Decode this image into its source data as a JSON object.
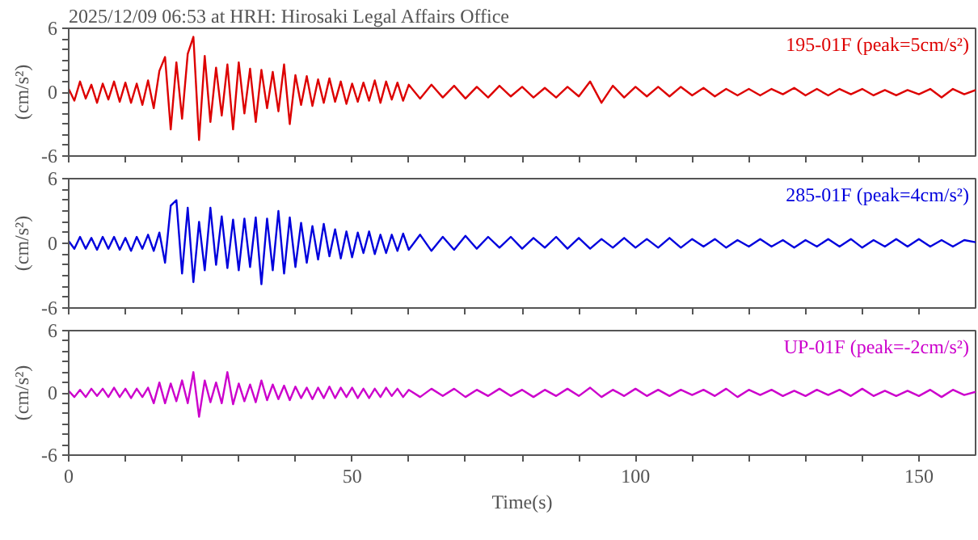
{
  "chart_data": [
    {
      "type": "line",
      "title": "2025/12/09 06:53 at HRH: Hirosaki Legal Affairs Office",
      "ylabel": "(cm/s²)",
      "annotations": [
        "195-01F (peak=5cm/s²)"
      ],
      "xlim": [
        0,
        160
      ],
      "ylim": [
        -6,
        6
      ],
      "xticks": [
        0,
        {
          "value": 10,
          "label": null
        },
        {
          "value": 20,
          "label": null
        },
        {
          "value": 30,
          "label": null
        },
        {
          "value": 40,
          "label": null
        },
        50,
        {
          "value": 60,
          "label": null
        },
        {
          "value": 70,
          "label": null
        },
        {
          "value": 80,
          "label": null
        },
        {
          "value": 90,
          "label": null
        },
        100,
        {
          "value": 110,
          "label": null
        },
        {
          "value": 120,
          "label": null
        },
        {
          "value": 130,
          "label": null
        },
        {
          "value": 140,
          "label": null
        },
        150
      ],
      "yticks": [
        -6,
        {
          "value": -5,
          "label": null
        },
        {
          "value": -4,
          "label": null
        },
        {
          "value": -3,
          "label": null
        },
        {
          "value": -2,
          "label": null
        },
        {
          "value": -1,
          "label": null
        },
        0,
        {
          "value": 1,
          "label": null
        },
        {
          "value": 2,
          "label": null
        },
        {
          "value": 3,
          "label": null
        },
        {
          "value": 4,
          "label": null
        },
        {
          "value": 5,
          "label": null
        },
        6
      ],
      "tick_labels": "y",
      "grid": false,
      "marker": "none",
      "series": [
        {
          "color": "#dd0000",
          "x": [
            0,
            1,
            2,
            3,
            4,
            5,
            6,
            7,
            8,
            9,
            10,
            11,
            12,
            13,
            14,
            15,
            16,
            17,
            18,
            19,
            20,
            21,
            22,
            23,
            24,
            25,
            26,
            27,
            28,
            29,
            30,
            31,
            32,
            33,
            34,
            35,
            36,
            37,
            38,
            39,
            40,
            41,
            42,
            43,
            44,
            45,
            46,
            47,
            48,
            49,
            50,
            51,
            52,
            53,
            54,
            55,
            56,
            57,
            58,
            59,
            60,
            62,
            64,
            66,
            68,
            70,
            72,
            74,
            76,
            78,
            80,
            82,
            84,
            86,
            88,
            90,
            92,
            94,
            96,
            98,
            100,
            102,
            104,
            106,
            108,
            110,
            112,
            114,
            116,
            118,
            120,
            122,
            124,
            126,
            128,
            130,
            132,
            134,
            136,
            138,
            140,
            142,
            144,
            146,
            148,
            150,
            152,
            154,
            156,
            158,
            160
          ],
          "values": [
            0.3,
            -0.8,
            1,
            -0.6,
            0.7,
            -1,
            0.8,
            -0.7,
            1,
            -0.9,
            0.9,
            -1,
            0.8,
            -1.2,
            1.1,
            -1.5,
            2,
            3.3,
            -3.5,
            2.8,
            -2.5,
            3.6,
            5.2,
            -4.5,
            3.4,
            -2.8,
            2.3,
            -2.2,
            2.6,
            -3.5,
            2.8,
            -2,
            2.2,
            -2.8,
            2.1,
            -1.5,
            1.9,
            -1.8,
            2.6,
            -3,
            1.6,
            -1.2,
            1.5,
            -1.3,
            1.2,
            -1,
            1.3,
            -0.9,
            1,
            -1.1,
            0.8,
            -0.9,
            0.9,
            -0.8,
            1.1,
            -1,
            1,
            -0.7,
            0.9,
            -0.8,
            0.7,
            -0.6,
            0.7,
            -0.5,
            0.6,
            -0.6,
            0.5,
            -0.5,
            0.6,
            -0.4,
            0.5,
            -0.5,
            0.4,
            -0.5,
            0.5,
            -0.4,
            1,
            -1,
            0.6,
            -0.5,
            0.5,
            -0.4,
            0.5,
            -0.4,
            0.5,
            -0.3,
            0.4,
            -0.4,
            0.3,
            -0.3,
            0.3,
            -0.3,
            0.3,
            -0.2,
            0.4,
            -0.3,
            0.3,
            -0.3,
            0.3,
            -0.2,
            0.3,
            -0.3,
            0.2,
            -0.3,
            0.2,
            -0.2,
            0.3,
            -0.5,
            0.3,
            -0.2,
            0.2
          ]
        }
      ]
    },
    {
      "type": "line",
      "ylabel": "(cm/s²)",
      "annotations": [
        "285-01F (peak=4cm/s²)"
      ],
      "xlim": [
        0,
        160
      ],
      "ylim": [
        -6,
        6
      ],
      "xticks": [
        0,
        {
          "value": 10,
          "label": null
        },
        {
          "value": 20,
          "label": null
        },
        {
          "value": 30,
          "label": null
        },
        {
          "value": 40,
          "label": null
        },
        50,
        {
          "value": 60,
          "label": null
        },
        {
          "value": 70,
          "label": null
        },
        {
          "value": 80,
          "label": null
        },
        {
          "value": 90,
          "label": null
        },
        100,
        {
          "value": 110,
          "label": null
        },
        {
          "value": 120,
          "label": null
        },
        {
          "value": 130,
          "label": null
        },
        {
          "value": 140,
          "label": null
        },
        150
      ],
      "yticks": [
        -6,
        {
          "value": -5,
          "label": null
        },
        {
          "value": -4,
          "label": null
        },
        {
          "value": -3,
          "label": null
        },
        {
          "value": -2,
          "label": null
        },
        {
          "value": -1,
          "label": null
        },
        0,
        {
          "value": 1,
          "label": null
        },
        {
          "value": 2,
          "label": null
        },
        {
          "value": 3,
          "label": null
        },
        {
          "value": 4,
          "label": null
        },
        {
          "value": 5,
          "label": null
        },
        6
      ],
      "tick_labels": "y",
      "grid": false,
      "marker": "none",
      "series": [
        {
          "color": "#0000dd",
          "x": [
            0,
            1,
            2,
            3,
            4,
            5,
            6,
            7,
            8,
            9,
            10,
            11,
            12,
            13,
            14,
            15,
            16,
            17,
            18,
            19,
            20,
            21,
            22,
            23,
            24,
            25,
            26,
            27,
            28,
            29,
            30,
            31,
            32,
            33,
            34,
            35,
            36,
            37,
            38,
            39,
            40,
            41,
            42,
            43,
            44,
            45,
            46,
            47,
            48,
            49,
            50,
            51,
            52,
            53,
            54,
            55,
            56,
            57,
            58,
            59,
            60,
            62,
            64,
            66,
            68,
            70,
            72,
            74,
            76,
            78,
            80,
            82,
            84,
            86,
            88,
            90,
            92,
            94,
            96,
            98,
            100,
            102,
            104,
            106,
            108,
            110,
            112,
            114,
            116,
            118,
            120,
            122,
            124,
            126,
            128,
            130,
            132,
            134,
            136,
            138,
            140,
            142,
            144,
            146,
            148,
            150,
            152,
            154,
            156,
            158,
            160
          ],
          "values": [
            0.2,
            -0.5,
            0.6,
            -0.5,
            0.5,
            -0.6,
            0.6,
            -0.5,
            0.6,
            -0.6,
            0.5,
            -0.7,
            0.6,
            -0.5,
            0.8,
            -0.7,
            1,
            -1.8,
            3.5,
            4,
            -2.8,
            3.3,
            -3.6,
            2,
            -2.5,
            3.3,
            -2,
            2.5,
            -2.3,
            2.2,
            -2.5,
            2.3,
            -2.2,
            2.4,
            -3.8,
            2.3,
            -2.5,
            3,
            -2.8,
            2.4,
            -2.2,
            1.9,
            -1.8,
            1.6,
            -1.5,
            1.8,
            -1.2,
            1.3,
            -1.4,
            1.1,
            -1.3,
            1,
            -0.9,
            1.1,
            -1,
            0.8,
            -0.9,
            0.8,
            -0.7,
            0.9,
            -0.6,
            0.8,
            -0.7,
            0.6,
            -0.6,
            0.7,
            -0.5,
            0.6,
            -0.4,
            0.6,
            -0.5,
            0.5,
            -0.4,
            0.6,
            -0.5,
            0.5,
            -0.5,
            0.4,
            -0.4,
            0.5,
            -0.4,
            0.4,
            -0.4,
            0.5,
            -0.4,
            0.4,
            -0.3,
            0.4,
            -0.4,
            0.3,
            -0.3,
            0.4,
            -0.3,
            0.3,
            -0.4,
            0.3,
            -0.3,
            0.4,
            -0.3,
            0.4,
            -0.4,
            0.3,
            -0.3,
            0.4,
            -0.3,
            0.4,
            -0.3,
            0.3,
            -0.3,
            0.3,
            0.1
          ]
        }
      ]
    },
    {
      "type": "line",
      "xlabel": "Time(s)",
      "ylabel": "(cm/s²)",
      "annotations": [
        "UP-01F (peak=-2cm/s²)"
      ],
      "xlim": [
        0,
        160
      ],
      "ylim": [
        -6,
        6
      ],
      "xticks": [
        0,
        {
          "value": 10,
          "label": null
        },
        {
          "value": 20,
          "label": null
        },
        {
          "value": 30,
          "label": null
        },
        {
          "value": 40,
          "label": null
        },
        50,
        {
          "value": 60,
          "label": null
        },
        {
          "value": 70,
          "label": null
        },
        {
          "value": 80,
          "label": null
        },
        {
          "value": 90,
          "label": null
        },
        100,
        {
          "value": 110,
          "label": null
        },
        {
          "value": 120,
          "label": null
        },
        {
          "value": 130,
          "label": null
        },
        {
          "value": 140,
          "label": null
        },
        150
      ],
      "yticks": [
        -6,
        {
          "value": -5,
          "label": null
        },
        {
          "value": -4,
          "label": null
        },
        {
          "value": -3,
          "label": null
        },
        {
          "value": -2,
          "label": null
        },
        {
          "value": -1,
          "label": null
        },
        0,
        {
          "value": 1,
          "label": null
        },
        {
          "value": 2,
          "label": null
        },
        {
          "value": 3,
          "label": null
        },
        {
          "value": 4,
          "label": null
        },
        {
          "value": 5,
          "label": null
        },
        6
      ],
      "grid": false,
      "marker": "none",
      "series": [
        {
          "color": "#cc00cc",
          "x": [
            0,
            1,
            2,
            3,
            4,
            5,
            6,
            7,
            8,
            9,
            10,
            11,
            12,
            13,
            14,
            15,
            16,
            17,
            18,
            19,
            20,
            21,
            22,
            23,
            24,
            25,
            26,
            27,
            28,
            29,
            30,
            31,
            32,
            33,
            34,
            35,
            36,
            37,
            38,
            39,
            40,
            41,
            42,
            43,
            44,
            45,
            46,
            47,
            48,
            49,
            50,
            51,
            52,
            53,
            54,
            55,
            56,
            57,
            58,
            59,
            60,
            62,
            64,
            66,
            68,
            70,
            72,
            74,
            76,
            78,
            80,
            82,
            84,
            86,
            88,
            90,
            92,
            94,
            96,
            98,
            100,
            102,
            104,
            106,
            108,
            110,
            112,
            114,
            116,
            118,
            120,
            122,
            124,
            126,
            128,
            130,
            132,
            134,
            136,
            138,
            140,
            142,
            144,
            146,
            148,
            150,
            152,
            154,
            156,
            158,
            160
          ],
          "values": [
            0.2,
            -0.4,
            0.3,
            -0.4,
            0.4,
            -0.3,
            0.4,
            -0.4,
            0.5,
            -0.4,
            0.4,
            -0.5,
            0.4,
            -0.4,
            0.5,
            -1,
            1,
            -1,
            0.9,
            -0.8,
            1.2,
            -1,
            2,
            -2.3,
            1.2,
            -0.9,
            1,
            -1,
            2,
            -1.1,
            0.9,
            -0.8,
            0.8,
            -0.9,
            1.2,
            -0.7,
            0.8,
            -0.6,
            0.7,
            -0.7,
            0.6,
            -0.5,
            0.5,
            -0.6,
            0.5,
            -0.5,
            0.6,
            -0.5,
            0.5,
            -0.4,
            0.5,
            -0.5,
            0.4,
            -0.5,
            0.4,
            -0.4,
            0.5,
            -0.3,
            0.4,
            -0.4,
            0.3,
            -0.4,
            0.4,
            -0.3,
            0.4,
            -0.4,
            0.3,
            -0.3,
            0.4,
            -0.3,
            0.3,
            -0.4,
            0.3,
            -0.3,
            0.4,
            -0.3,
            0.5,
            -0.4,
            0.3,
            -0.3,
            0.4,
            -0.3,
            0.3,
            -0.3,
            0.3,
            -0.2,
            0.3,
            -0.3,
            0.4,
            -0.4,
            0.3,
            -0.2,
            0.3,
            -0.3,
            0.2,
            -0.3,
            0.3,
            -0.2,
            0.3,
            -0.3,
            0.4,
            -0.3,
            0.2,
            -0.3,
            0.2,
            -0.3,
            0.3,
            -0.4,
            0.3,
            -0.2,
            0.1
          ]
        }
      ]
    }
  ]
}
